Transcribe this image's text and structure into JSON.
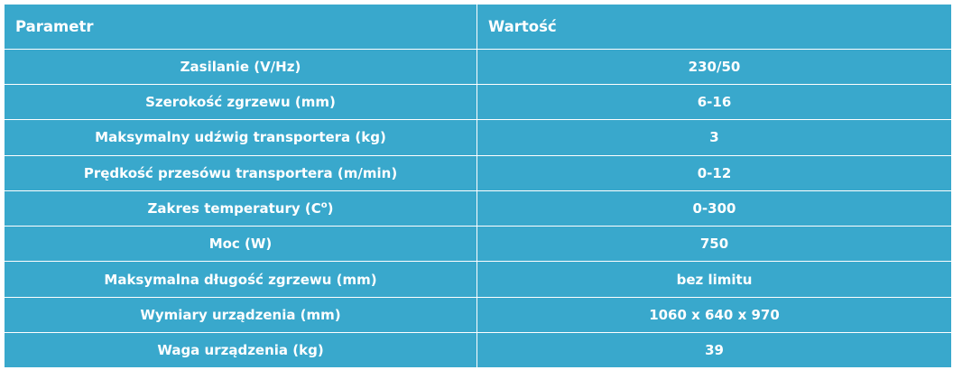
{
  "table": {
    "headers": {
      "parameter": "Parametr",
      "value": "Wartość"
    },
    "rows": [
      {
        "parameter": "Zasilanie (V/Hz)",
        "value": "230/50"
      },
      {
        "parameter": "Szerokość zgrzewu (mm)",
        "value": "6-16"
      },
      {
        "parameter": "Maksymalny udźwig transportera (kg)",
        "value": "3"
      },
      {
        "parameter": "Prędkość przesówu transportera (m/min)",
        "value": "0-12"
      },
      {
        "parameter": "Zakres temperatury (C",
        "parameter_sup": "o",
        "parameter_suffix": ")",
        "value": "0-300"
      },
      {
        "parameter": "Moc (W)",
        "value": "750"
      },
      {
        "parameter": "Maksymalna długość zgrzewu (mm)",
        "value": "bez limitu"
      },
      {
        "parameter": "Wymiary urządzenia (mm)",
        "value": "1060 x 640 x 970"
      },
      {
        "parameter": "Waga urządzenia (kg)",
        "value": "39"
      }
    ]
  },
  "colors": {
    "cell_background": "#39a8cc",
    "text": "#ffffff",
    "border": "#ffffff"
  }
}
